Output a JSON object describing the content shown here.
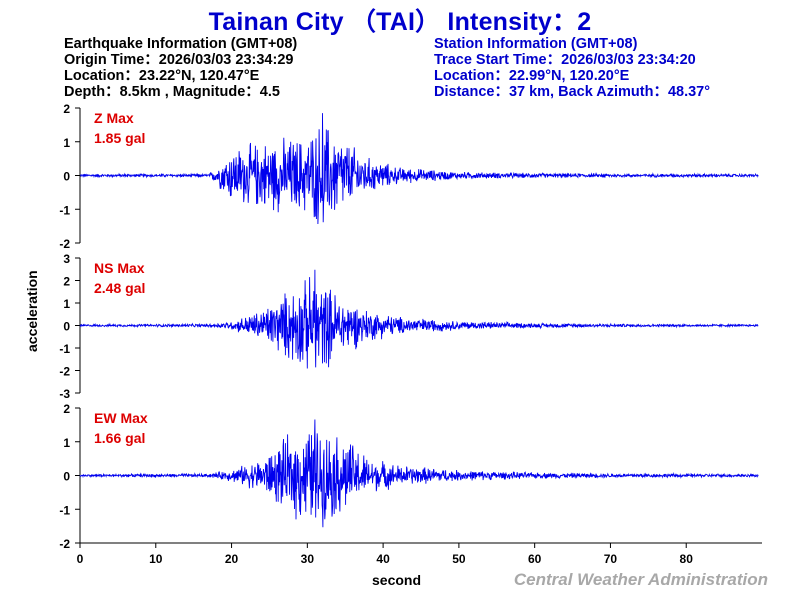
{
  "header": {
    "title": "Tainan City （TAI） Intensity：2"
  },
  "earthquake": {
    "heading": "Earthquake Information  (GMT+08)",
    "origin_time": "Origin Time：2026/03/03 23:34:29",
    "location": "Location：23.22°N, 120.47°E",
    "depth_magnitude": "Depth：8.5km , Magnitude：4.5"
  },
  "station": {
    "heading": "Station Information  (GMT+08)",
    "trace_start": "Trace Start Time：2026/03/03 23:34:20",
    "location": "Location：22.99°N, 120.20°E",
    "distance": "Distance：37 km, Back Azimuth：48.37°"
  },
  "axes": {
    "ylabel": "acceleration",
    "xlabel": "second"
  },
  "credit": "Central Weather Administration",
  "colors": {
    "title": "#0000cc",
    "trace": "#0000ee",
    "max_label": "#dd0000",
    "credit": "#a8a8a8"
  },
  "chart_data": [
    {
      "type": "line",
      "component": "Z",
      "max_label": "Z Max",
      "max_value": "1.85 gal",
      "peak": 1.85,
      "ylim": [
        -2,
        2
      ],
      "yticks": [
        "2",
        "1",
        "0",
        "-1",
        "-2"
      ],
      "x_range": [
        0,
        90
      ],
      "envelope_seconds": [
        0,
        17,
        18,
        20,
        25,
        30,
        32,
        35,
        38,
        42,
        50,
        60,
        70,
        89.5
      ],
      "envelope_amplitude": [
        0.05,
        0.05,
        0.3,
        0.9,
        1.2,
        1.3,
        1.85,
        1.2,
        0.6,
        0.28,
        0.12,
        0.08,
        0.06,
        0.05
      ]
    },
    {
      "type": "line",
      "component": "NS",
      "max_label": "NS Max",
      "max_value": "2.48 gal",
      "peak": 2.48,
      "ylim": [
        -3,
        3
      ],
      "yticks": [
        "3",
        "2",
        "1",
        "0",
        "-1",
        "-2",
        "-3"
      ],
      "x_range": [
        0,
        90
      ],
      "envelope_seconds": [
        0,
        17,
        20,
        24,
        28,
        31,
        35,
        38,
        42,
        50,
        60,
        70,
        89.5
      ],
      "envelope_amplitude": [
        0.05,
        0.08,
        0.2,
        0.8,
        1.9,
        2.48,
        1.4,
        0.8,
        0.45,
        0.22,
        0.12,
        0.08,
        0.05
      ]
    },
    {
      "type": "line",
      "component": "EW",
      "max_label": "EW Max",
      "max_value": "1.66 gal",
      "peak": 1.66,
      "ylim": [
        -2,
        2
      ],
      "yticks": [
        "2",
        "1",
        "0",
        "-1",
        "-2"
      ],
      "x_range": [
        0,
        90
      ],
      "envelope_seconds": [
        0,
        17,
        20,
        24,
        28,
        31,
        35,
        38,
        42,
        50,
        60,
        70,
        89.5
      ],
      "envelope_amplitude": [
        0.04,
        0.06,
        0.2,
        0.55,
        1.4,
        1.66,
        1.3,
        0.6,
        0.35,
        0.18,
        0.1,
        0.07,
        0.05
      ]
    }
  ],
  "xaxis": {
    "ticks": [
      0,
      10,
      20,
      30,
      40,
      50,
      60,
      70,
      80
    ]
  }
}
